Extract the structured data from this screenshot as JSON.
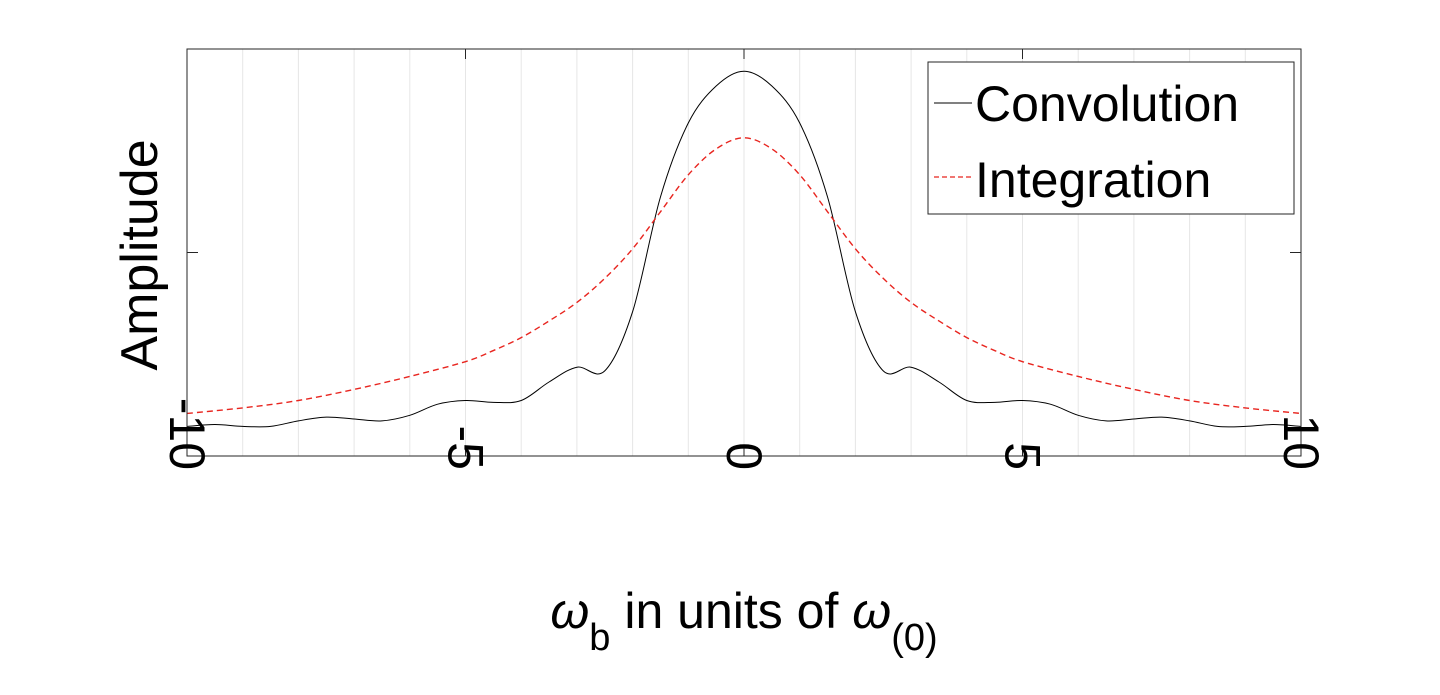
{
  "chart_data": {
    "type": "line",
    "title": "",
    "xlabel": {
      "parts": [
        "ω",
        "b",
        " in units of ",
        "ω",
        "(0)"
      ]
    },
    "ylabel": "Amplitude",
    "xlim": [
      -10,
      10
    ],
    "ylim": [
      0,
      1.1
    ],
    "xticks": [
      -10,
      -5,
      0,
      5,
      10
    ],
    "xtick_labels": [
      "-10",
      "-5",
      "0",
      "5",
      "10"
    ],
    "yticks": [
      0.55
    ],
    "ytick_labels": [
      ""
    ],
    "x_grid_step": 1,
    "grid": "vertical",
    "legend_position": "top-right",
    "series": [
      {
        "name": "Convolution",
        "color": "#000000",
        "style": "solid",
        "x": [
          -10,
          -9.5,
          -9,
          -8.5,
          -8,
          -7.5,
          -7,
          -6.5,
          -6,
          -5.5,
          -5,
          -4.5,
          -4,
          -3.5,
          -3,
          -2.5,
          -2,
          -1.5,
          -1,
          -0.5,
          0,
          0.5,
          1,
          1.5,
          2,
          2.5,
          3,
          3.5,
          4,
          4.5,
          5,
          5.5,
          6,
          6.5,
          7,
          7.5,
          8,
          8.5,
          9,
          9.5,
          10
        ],
        "y": [
          0.08,
          0.085,
          0.08,
          0.08,
          0.095,
          0.105,
          0.1,
          0.095,
          0.11,
          0.14,
          0.15,
          0.145,
          0.15,
          0.2,
          0.24,
          0.23,
          0.39,
          0.7,
          0.9,
          1.0,
          1.04,
          1.0,
          0.9,
          0.7,
          0.39,
          0.23,
          0.24,
          0.2,
          0.15,
          0.145,
          0.15,
          0.14,
          0.11,
          0.095,
          0.1,
          0.105,
          0.095,
          0.08,
          0.08,
          0.085,
          0.08
        ]
      },
      {
        "name": "Integration",
        "color": "#e8251f",
        "style": "dashed",
        "x": [
          -10,
          -9,
          -8,
          -7,
          -6,
          -5,
          -4.5,
          -4,
          -3.5,
          -3,
          -2.5,
          -2,
          -1.5,
          -1,
          -0.5,
          0,
          0.5,
          1,
          1.5,
          2,
          2.5,
          3,
          3.5,
          4,
          4.5,
          5,
          6,
          7,
          8,
          9,
          10
        ],
        "y": [
          0.115,
          0.13,
          0.15,
          0.18,
          0.215,
          0.255,
          0.285,
          0.32,
          0.365,
          0.415,
          0.48,
          0.56,
          0.66,
          0.76,
          0.83,
          0.86,
          0.83,
          0.76,
          0.66,
          0.56,
          0.48,
          0.415,
          0.365,
          0.32,
          0.285,
          0.255,
          0.215,
          0.18,
          0.15,
          0.13,
          0.115
        ]
      }
    ]
  }
}
